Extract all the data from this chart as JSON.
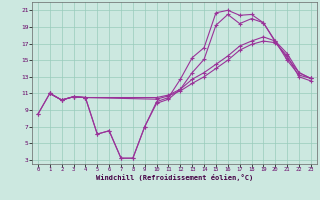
{
  "background_color": "#cce8e0",
  "grid_color": "#99ccbb",
  "line_color": "#993399",
  "xlabel": "Windchill (Refroidissement éolien,°C)",
  "xlim": [
    -0.5,
    23.5
  ],
  "ylim": [
    2.5,
    22.0
  ],
  "xticks": [
    0,
    1,
    2,
    3,
    4,
    5,
    6,
    7,
    8,
    9,
    10,
    11,
    12,
    13,
    14,
    15,
    16,
    17,
    18,
    19,
    20,
    21,
    22,
    23
  ],
  "yticks": [
    3,
    5,
    7,
    9,
    11,
    13,
    15,
    17,
    19,
    21
  ],
  "series": [
    {
      "x": [
        0,
        1,
        2,
        3,
        4,
        5,
        6,
        7,
        8,
        9,
        10,
        11,
        12,
        13,
        14,
        15,
        16,
        17,
        18,
        19,
        20,
        21,
        22,
        23
      ],
      "y": [
        8.5,
        11.0,
        10.2,
        10.6,
        10.5,
        6.1,
        6.5,
        3.2,
        3.2,
        7.0,
        10.0,
        10.5,
        12.7,
        15.3,
        16.5,
        20.7,
        21.0,
        20.4,
        20.5,
        19.5,
        17.2,
        15.3,
        13.5,
        12.8
      ]
    },
    {
      "x": [
        0,
        1,
        2,
        3,
        4,
        5,
        6,
        7,
        8,
        9,
        10,
        11,
        12,
        13,
        14,
        15,
        16,
        17,
        18,
        19,
        20,
        21,
        22,
        23
      ],
      "y": [
        8.5,
        11.0,
        10.2,
        10.6,
        10.5,
        6.1,
        6.5,
        3.2,
        3.2,
        7.0,
        9.8,
        10.3,
        11.5,
        13.5,
        15.1,
        19.2,
        20.5,
        19.4,
        20.0,
        19.5,
        17.3,
        15.0,
        13.2,
        12.8
      ]
    },
    {
      "x": [
        1,
        2,
        3,
        4,
        10,
        11,
        12,
        13,
        14,
        15,
        16,
        17,
        18,
        19,
        20,
        21,
        22,
        23
      ],
      "y": [
        11.0,
        10.2,
        10.6,
        10.5,
        10.5,
        10.8,
        11.5,
        12.7,
        13.5,
        14.5,
        15.5,
        16.7,
        17.3,
        17.8,
        17.3,
        15.8,
        13.5,
        12.8
      ]
    },
    {
      "x": [
        1,
        2,
        3,
        4,
        10,
        11,
        12,
        13,
        14,
        15,
        16,
        17,
        18,
        19,
        20,
        21,
        22,
        23
      ],
      "y": [
        11.0,
        10.2,
        10.6,
        10.5,
        10.3,
        10.7,
        11.3,
        12.2,
        13.0,
        14.0,
        15.0,
        16.2,
        16.9,
        17.3,
        17.1,
        15.5,
        13.0,
        12.5
      ]
    }
  ]
}
